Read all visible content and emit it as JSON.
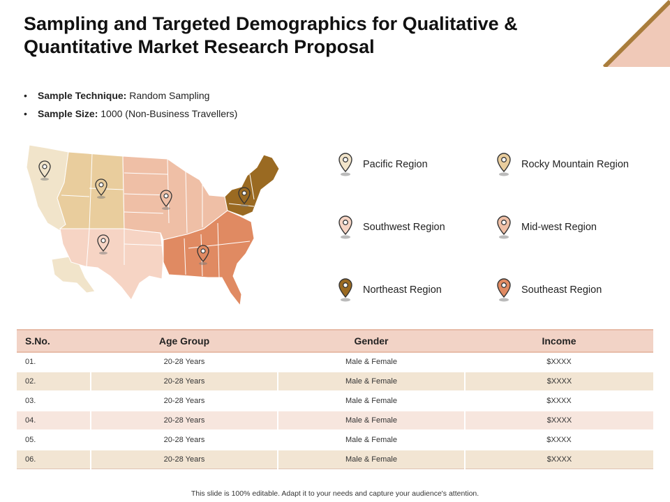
{
  "title": "Sampling and Targeted Demographics for Qualitative & Quantitative Market Research Proposal",
  "bullets": [
    {
      "label": "Sample Technique:",
      "value": " Random Sampling"
    },
    {
      "label": "Sample Size:",
      "value": " 1000 (Non-Business Travellers)"
    }
  ],
  "regions": [
    {
      "name": "Pacific Region",
      "color": "#f1e4ca"
    },
    {
      "name": "Rocky Mountain Region",
      "color": "#e9cd9d"
    },
    {
      "name": "Southwest Region",
      "color": "#f6d4c4"
    },
    {
      "name": "Mid-west Region",
      "color": "#efbfa6"
    },
    {
      "name": "Northeast Region",
      "color": "#9a6a22"
    },
    {
      "name": "Southeast Region",
      "color": "#e08a62"
    }
  ],
  "table": {
    "headers": [
      "S.No.",
      "Age Group",
      "Gender",
      "Income"
    ],
    "rows": [
      [
        "01.",
        "20-28 Years",
        "Male & Female",
        "$XXXX"
      ],
      [
        "02.",
        "20-28 Years",
        "Male & Female",
        "$XXXX"
      ],
      [
        "03.",
        "20-28 Years",
        "Male & Female",
        "$XXXX"
      ],
      [
        "04.",
        "20-28 Years",
        "Male & Female",
        "$XXXX"
      ],
      [
        "05.",
        "20-28 Years",
        "Male & Female",
        "$XXXX"
      ],
      [
        "06.",
        "20-28 Years",
        "Male & Female",
        "$XXXX"
      ]
    ]
  },
  "footer": "This slide is 100% editable. Adapt it to your needs and capture your audience's attention."
}
